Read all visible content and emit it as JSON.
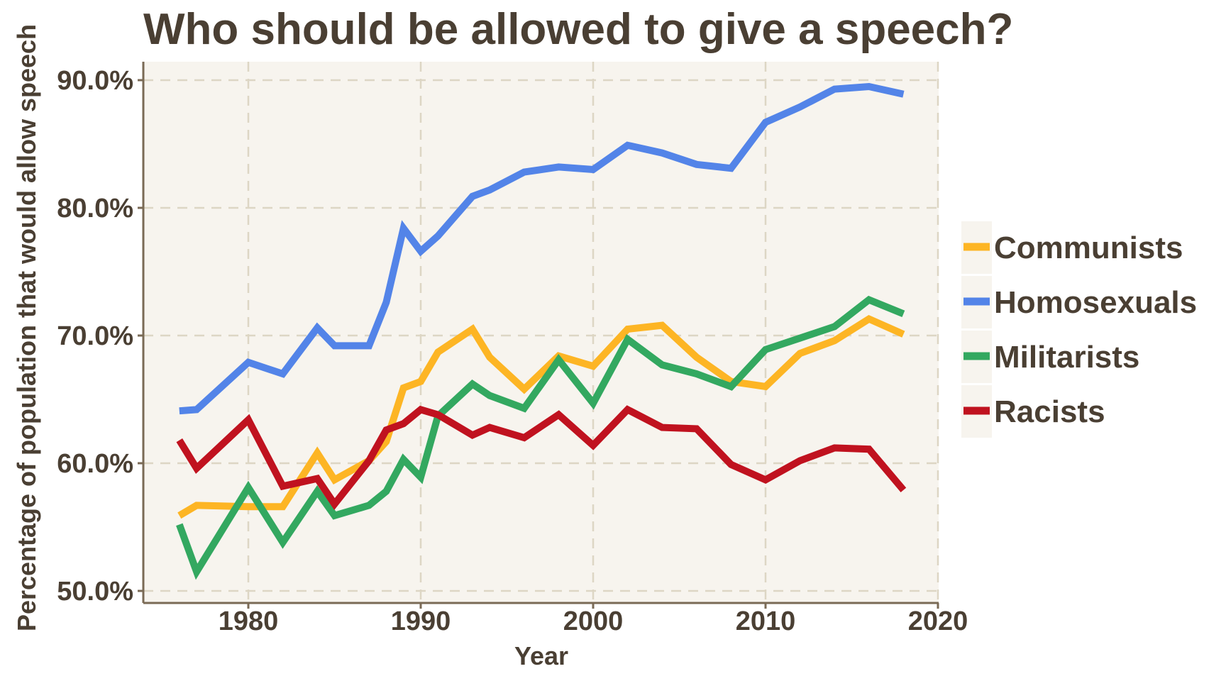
{
  "chart_data": {
    "type": "line",
    "title": "Who should be allowed to give a speech?",
    "xlabel": "Year",
    "ylabel": "Percentage of population that would allow speech",
    "xlim": [
      1974,
      2020
    ],
    "ylim": [
      49.5,
      91.5
    ],
    "xticks": [
      1980,
      1990,
      2000,
      2010,
      2020
    ],
    "xtick_labels": [
      "1980",
      "1990",
      "2000",
      "2010",
      "2020"
    ],
    "yticks": [
      50,
      60,
      70,
      80,
      90
    ],
    "ytick_labels": [
      "50.0%",
      "60.0%",
      "70.0%",
      "80.0%",
      "90.0%"
    ],
    "grid": true,
    "legend_position": "right",
    "background_color": "#f7f4ee",
    "text_color": "#4a3f33",
    "x": [
      1976,
      1977,
      1980,
      1982,
      1984,
      1985,
      1987,
      1988,
      1989,
      1990,
      1991,
      1993,
      1994,
      1996,
      1998,
      2000,
      2002,
      2004,
      2006,
      2008,
      2010,
      2012,
      2014,
      2016,
      2018
    ],
    "series": [
      {
        "name": "Communists",
        "color": "#fdb524",
        "values": [
          55.9,
          56.7,
          56.6,
          56.6,
          60.8,
          58.7,
          60.2,
          61.7,
          65.9,
          66.4,
          68.7,
          70.5,
          68.3,
          65.8,
          68.4,
          67.6,
          70.5,
          70.8,
          68.3,
          66.4,
          66.0,
          68.6,
          69.6,
          71.3,
          70.1
        ]
      },
      {
        "name": "Homosexuals",
        "color": "#5384e8",
        "values": [
          64.1,
          64.2,
          67.9,
          67.0,
          70.6,
          69.2,
          69.2,
          72.6,
          78.4,
          76.6,
          77.8,
          80.9,
          81.4,
          82.8,
          83.2,
          83.0,
          84.9,
          84.3,
          83.4,
          83.1,
          86.7,
          87.9,
          89.3,
          89.5,
          88.9
        ]
      },
      {
        "name": "Militarists",
        "color": "#33a860",
        "values": [
          55.2,
          51.5,
          58.1,
          53.8,
          57.8,
          55.9,
          56.7,
          57.8,
          60.3,
          58.9,
          63.7,
          66.2,
          65.3,
          64.3,
          68.1,
          64.7,
          69.7,
          67.7,
          67.0,
          66.0,
          68.9,
          69.8,
          70.7,
          72.8,
          71.7
        ]
      },
      {
        "name": "Racists",
        "color": "#c0121f",
        "values": [
          61.8,
          59.6,
          63.4,
          58.2,
          58.8,
          56.8,
          60.2,
          62.6,
          63.1,
          64.2,
          63.8,
          62.2,
          62.8,
          62.0,
          63.8,
          61.4,
          64.2,
          62.8,
          62.7,
          59.9,
          58.7,
          60.2,
          61.2,
          61.1,
          57.9
        ]
      }
    ]
  }
}
